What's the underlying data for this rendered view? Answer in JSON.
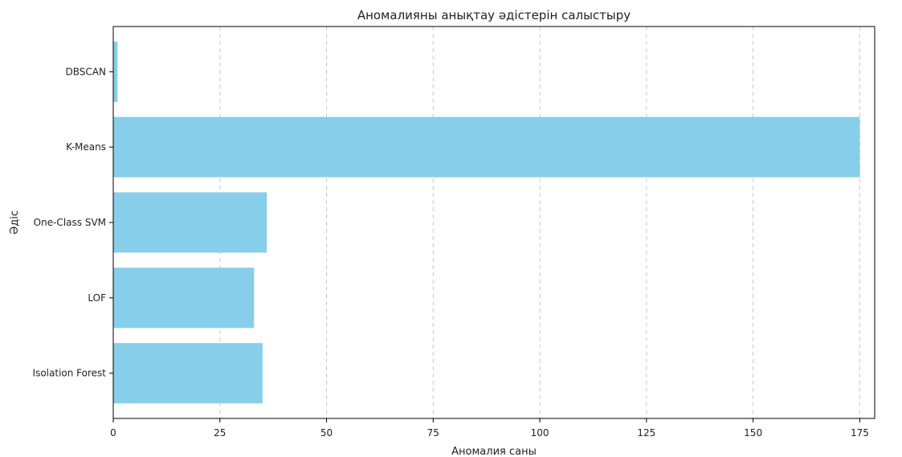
{
  "chart_data": {
    "type": "bar",
    "orientation": "horizontal",
    "title": "Аномалияны анықтау әдістерін салыстыру",
    "xlabel": "Аномалия саны",
    "ylabel": "Әдіс",
    "categories": [
      "Isolation Forest",
      "LOF",
      "One-Class SVM",
      "K-Means",
      "DBSCAN"
    ],
    "values": [
      35,
      33,
      36,
      175,
      1
    ],
    "xlim": [
      0,
      178.5
    ],
    "xticks": [
      0,
      25,
      50,
      75,
      100,
      125,
      150,
      175
    ],
    "grid": "x-dashed",
    "bar_color": "#87ceeb"
  }
}
